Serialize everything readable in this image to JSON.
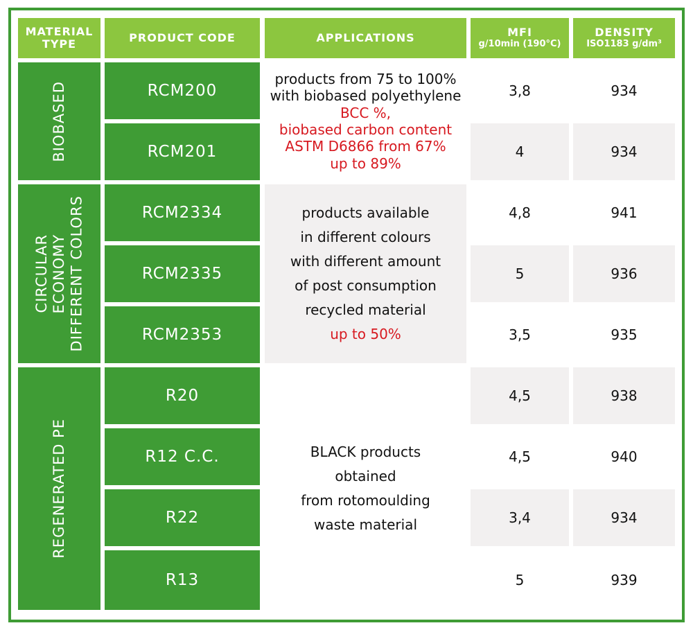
{
  "headers": {
    "material_type": [
      "MATERIAL",
      "TYPE"
    ],
    "product_code": "PRODUCT CODE",
    "applications": "APPLICATIONS",
    "mfi": [
      "MFI",
      "g/10min (190°C)"
    ],
    "density": [
      "DENSITY",
      "ISO1183 g/dm³"
    ]
  },
  "groups": [
    {
      "material_type": [
        "BIOBASED"
      ],
      "applications": {
        "black": [
          "products from 75 to 100%",
          "with biobased polyethylene"
        ],
        "red": [
          "BCC %,",
          "biobased carbon content",
          "ASTM D6866 from 67%",
          "up to 89%"
        ]
      },
      "rows": [
        {
          "code": "RCM200",
          "mfi": "3,8",
          "density": "934"
        },
        {
          "code": "RCM201",
          "mfi": "4",
          "density": "934"
        }
      ]
    },
    {
      "material_type": [
        "CIRCULAR",
        "ECONOMY",
        "DIFFERENT COLORS"
      ],
      "applications": {
        "black": [
          "products available",
          "in different colours",
          "with different amount",
          "of post consumption",
          "recycled material"
        ],
        "red": [
          "up to 50%"
        ]
      },
      "rows": [
        {
          "code": "RCM2334",
          "mfi": "4,8",
          "density": "941"
        },
        {
          "code": "RCM2335",
          "mfi": "5",
          "density": "936"
        },
        {
          "code": "RCM2353",
          "mfi": "3,5",
          "density": "935"
        }
      ]
    },
    {
      "material_type": [
        "REGENERATED PE"
      ],
      "applications": {
        "black": [
          "BLACK products",
          "obtained",
          "from rotomoulding",
          "waste material"
        ],
        "red": []
      },
      "rows": [
        {
          "code": "R20",
          "mfi": "4,5",
          "density": "938"
        },
        {
          "code": "R12 C.C.",
          "mfi": "4,5",
          "density": "940"
        },
        {
          "code": "R22",
          "mfi": "3,4",
          "density": "934"
        },
        {
          "code": "R13",
          "mfi": "5",
          "density": "939"
        }
      ]
    }
  ]
}
